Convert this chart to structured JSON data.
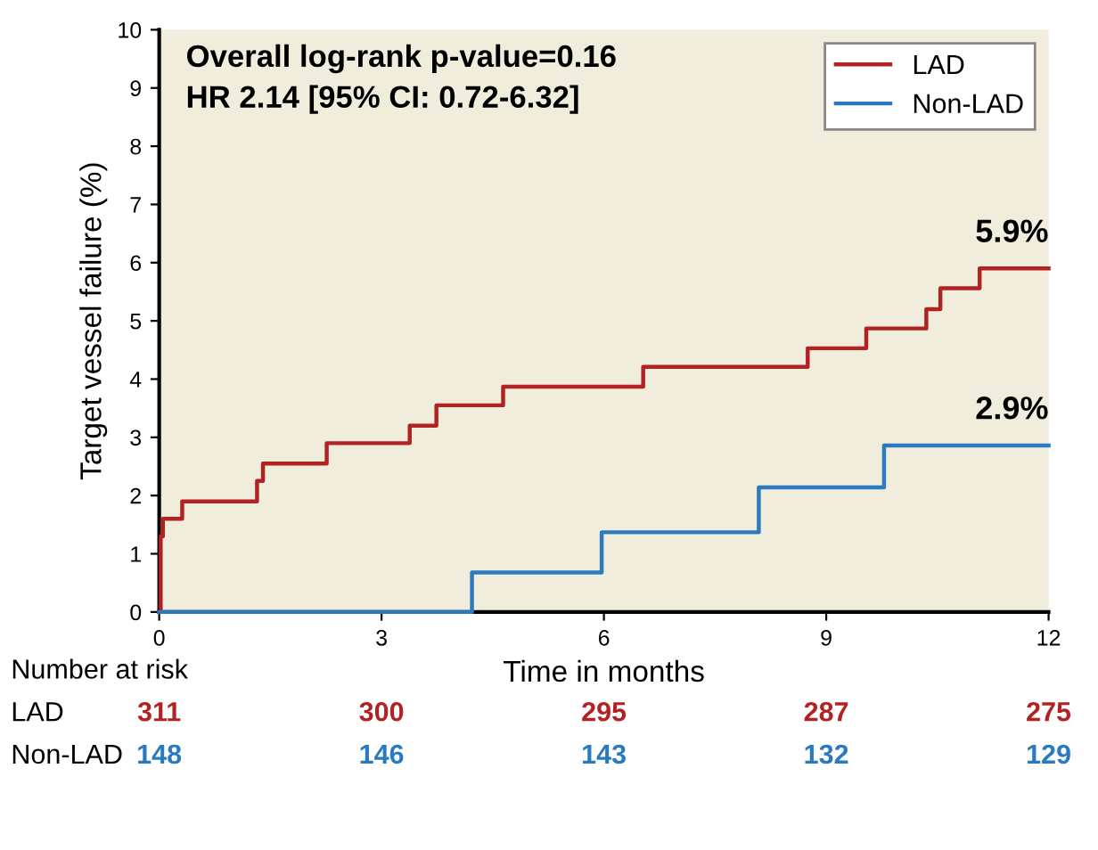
{
  "chart_data": {
    "type": "step",
    "title": "Overall log-rank p-value=0.16",
    "subtitle": "HR 2.14 [95% CI: 0.72-6.32]",
    "xlabel": "Time in months",
    "ylabel": "Target vessel failure (%)",
    "series": [
      {
        "name": "LAD",
        "color": "#b22222",
        "x": [
          0,
          0.02,
          0.05,
          0.31,
          1.32,
          1.4,
          2.26,
          3.38,
          3.74,
          4.64,
          6.53,
          8.75,
          9.54,
          10.35,
          10.54,
          11.07,
          12
        ],
        "values": [
          0,
          1.3,
          1.6,
          1.9,
          2.25,
          2.55,
          2.9,
          3.2,
          3.55,
          3.87,
          4.21,
          4.53,
          4.87,
          5.2,
          5.56,
          5.9,
          5.9
        ]
      },
      {
        "name": "Non-LAD",
        "color": "#2a7abf",
        "x": [
          0,
          4.22,
          5.97,
          8.09,
          9.78,
          12
        ],
        "values": [
          0,
          0.68,
          1.37,
          2.14,
          2.86,
          2.86
        ]
      }
    ],
    "annotations": [
      {
        "text": "5.9%",
        "x": 12,
        "y": 5.9
      },
      {
        "text": "2.9%",
        "x": 12,
        "y": 2.86
      },
      "Number at risk",
      "311",
      "300",
      "295",
      "287",
      "275",
      "148",
      "146",
      "143",
      "132",
      "129"
    ],
    "xlim": [
      0,
      12
    ],
    "xticks": [
      0,
      3,
      6,
      9,
      12
    ],
    "ylim": [
      0,
      10
    ],
    "yticks": [
      0,
      1,
      2,
      3,
      4,
      5,
      6,
      7,
      8,
      9,
      10
    ],
    "grid": false,
    "legend": "top right",
    "marker": "none",
    "line_style": "solid"
  }
}
